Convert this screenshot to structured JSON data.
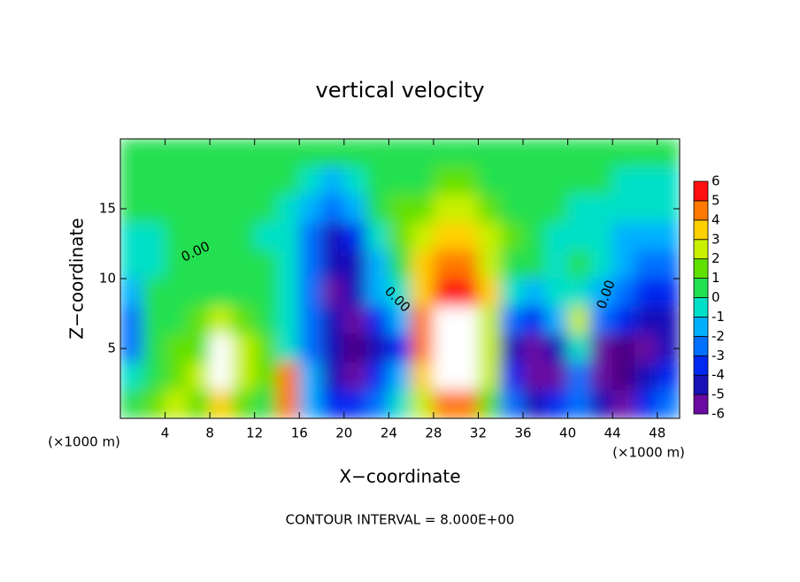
{
  "chart_data": {
    "type": "heatmap",
    "title": "vertical velocity",
    "x_label": "X−coordinate",
    "y_label": "Z−coordinate",
    "x_unit_left": "(×1000 m)",
    "x_unit_right": "(×1000 m)",
    "footnote": "CONTOUR INTERVAL = 8.000E+00",
    "contour_labels": [
      "0.00",
      "0.00",
      "0.00"
    ],
    "xlim": [
      0,
      50
    ],
    "ylim": [
      0,
      20
    ],
    "xticks": [
      4,
      8,
      12,
      16,
      20,
      24,
      28,
      32,
      36,
      40,
      44,
      48
    ],
    "yticks": [
      5,
      10,
      15
    ],
    "x": [
      1,
      3,
      5,
      7,
      9,
      11,
      13,
      15,
      17,
      19,
      21,
      23,
      25,
      27,
      29,
      31,
      33,
      35,
      37,
      39,
      41,
      43,
      45,
      47,
      49
    ],
    "y": [
      19,
      17,
      15,
      13,
      11,
      9,
      7,
      5,
      3,
      1
    ],
    "z": [
      [
        0.3,
        0.3,
        0.3,
        0.3,
        0.3,
        0.3,
        0.3,
        0.3,
        0.3,
        0.2,
        0.2,
        0.5,
        0.6,
        0.8,
        0.8,
        0.8,
        0.7,
        0.6,
        0.5,
        0.4,
        0.3,
        0.3,
        0.3,
        0.2,
        0.2
      ],
      [
        0.2,
        0.2,
        0.2,
        0.2,
        0.2,
        0.2,
        0.2,
        0.1,
        -0.5,
        -1,
        -0.5,
        0.5,
        0.8,
        1,
        1.2,
        1.2,
        1,
        0.8,
        0.6,
        0.4,
        0.2,
        0.1,
        0,
        0,
        0
      ],
      [
        0.1,
        0.1,
        0.1,
        0.1,
        0.1,
        0.1,
        0.1,
        0,
        -1,
        -2,
        -1,
        0.3,
        1.2,
        2,
        2.5,
        2.2,
        1.5,
        1,
        0.6,
        0.3,
        0,
        0,
        -0.3,
        -0.5,
        -0.5
      ],
      [
        0,
        0,
        0.1,
        0.1,
        0.1,
        0.1,
        0,
        -0.5,
        -2,
        -4,
        -3,
        -0.5,
        1.5,
        3,
        3.5,
        3.5,
        2.5,
        1.5,
        0.5,
        0,
        -0.3,
        -0.5,
        -1,
        -1.5,
        -1.5
      ],
      [
        -0.5,
        -0.2,
        0.3,
        0.5,
        0.5,
        0.3,
        0.1,
        -0.5,
        -2,
        -4.5,
        -4,
        -1,
        0.5,
        3.5,
        4.5,
        4.5,
        3,
        1,
        0.3,
        -0.2,
        0.3,
        -0.5,
        -1.5,
        -2,
        -2
      ],
      [
        -1,
        0.5,
        0.5,
        0.8,
        1,
        0.8,
        0.5,
        -0.3,
        -2.5,
        -5,
        -4.5,
        -1.5,
        0,
        4,
        5.5,
        5.5,
        3.5,
        0,
        -1,
        -0.5,
        0,
        -1,
        -2,
        -3,
        -3
      ],
      [
        -2,
        0.5,
        1,
        1.5,
        3,
        2,
        0.3,
        0,
        -2,
        -4,
        -6,
        -3,
        -1,
        5,
        6.5,
        6.5,
        3,
        -2,
        -3,
        -1,
        3,
        -2,
        -3,
        -4,
        -4
      ],
      [
        -2,
        0.5,
        1.5,
        2,
        6.5,
        3,
        2,
        0,
        -2,
        -4,
        -6.5,
        -4,
        -3,
        5,
        6.5,
        6.5,
        3,
        -4,
        -5,
        -4,
        0,
        -5,
        -6.5,
        -5,
        -4
      ],
      [
        0,
        1,
        2,
        2.5,
        6.5,
        3,
        2,
        4.5,
        -1,
        -4,
        -5,
        -3,
        -1,
        4,
        6.5,
        6.5,
        3,
        -3,
        -5,
        -5,
        -2,
        -5,
        -6.5,
        -4,
        -3
      ],
      [
        0.5,
        1.5,
        2.5,
        2,
        4,
        2,
        1,
        5,
        -1,
        -3,
        -3,
        -2,
        -0.5,
        3,
        5,
        5,
        2,
        -2,
        -4,
        -3,
        -2,
        -4,
        -5,
        -3,
        -2
      ]
    ],
    "levels": [
      -6,
      -5,
      -4,
      -3,
      -2,
      -1,
      0,
      1,
      2,
      3,
      4,
      5,
      6
    ],
    "colors": [
      "#6a0aa0",
      "#1810b8",
      "#0028f0",
      "#0070ff",
      "#00b0ff",
      "#00e0c8",
      "#20e050",
      "#60e000",
      "#c8f000",
      "#ffd000",
      "#ff7800",
      "#ff1010"
    ],
    "over_color": "#ffffff",
    "under_color": "#4a0080"
  }
}
